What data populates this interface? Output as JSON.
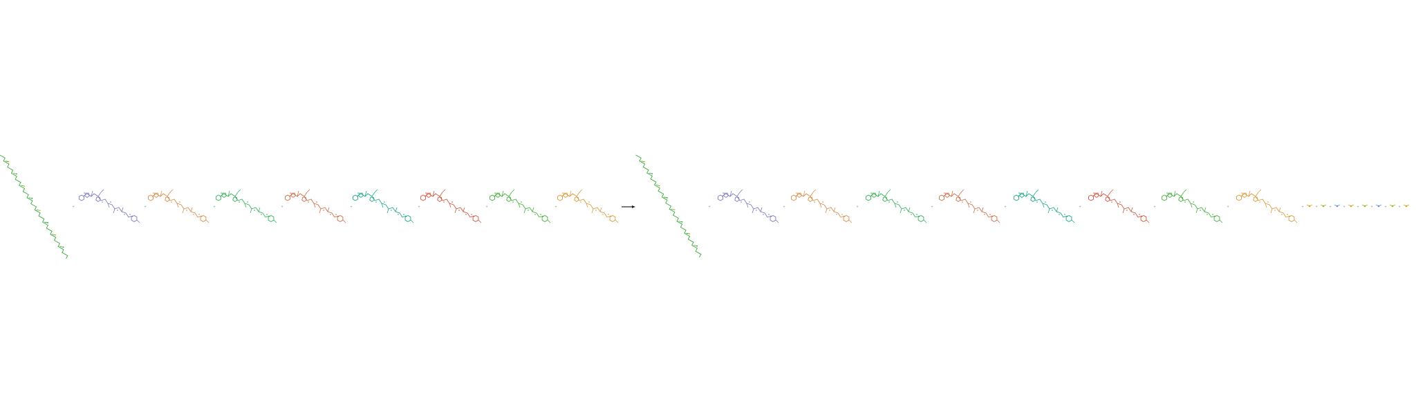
{
  "reactants": [
    {
      "label": "",
      "color": "#3aa63a",
      "kind": "long-chain"
    },
    {
      "label": "",
      "color": "#7b7bc0",
      "kind": "coa"
    },
    {
      "label": "",
      "color": "#d98c4a",
      "kind": "coa"
    },
    {
      "label": "",
      "color": "#36b35a",
      "kind": "coa"
    },
    {
      "label": "",
      "color": "#cf6e4a",
      "kind": "coa"
    },
    {
      "label": "",
      "color": "#1fa88a",
      "kind": "coa"
    },
    {
      "label": "",
      "color": "#d2553f",
      "kind": "coa"
    },
    {
      "label": "",
      "color": "#46b03d",
      "kind": "coa"
    },
    {
      "label": "",
      "color": "#d99a3a",
      "kind": "coa"
    }
  ],
  "products": [
    {
      "label": "",
      "color": "#3aa63a",
      "kind": "long-chain"
    },
    {
      "label": "",
      "color": "#7b7bc0",
      "kind": "coa"
    },
    {
      "label": "",
      "color": "#d98c4a",
      "kind": "coa"
    },
    {
      "label": "",
      "color": "#36b35a",
      "kind": "coa"
    },
    {
      "label": "",
      "color": "#cf6e4a",
      "kind": "coa"
    },
    {
      "label": "",
      "color": "#1fa88a",
      "kind": "coa"
    },
    {
      "label": "",
      "color": "#d2553f",
      "kind": "coa"
    },
    {
      "label": "",
      "color": "#46b03d",
      "kind": "coa"
    },
    {
      "label": "",
      "color": "#d99a3a",
      "kind": "coa"
    }
  ],
  "small_products": [
    {
      "label": "",
      "color": "#d9a31c"
    },
    {
      "label": "",
      "color": "#9cb82a"
    },
    {
      "label": "",
      "color": "#6a8ed6"
    },
    {
      "label": "",
      "color": "#d9a31c"
    },
    {
      "label": "",
      "color": "#9cb82a"
    },
    {
      "label": "",
      "color": "#6a8ed6"
    },
    {
      "label": "",
      "color": "#9cb82a"
    },
    {
      "label": "",
      "color": "#d9a31c"
    }
  ],
  "symbols": {
    "plus": "+"
  }
}
